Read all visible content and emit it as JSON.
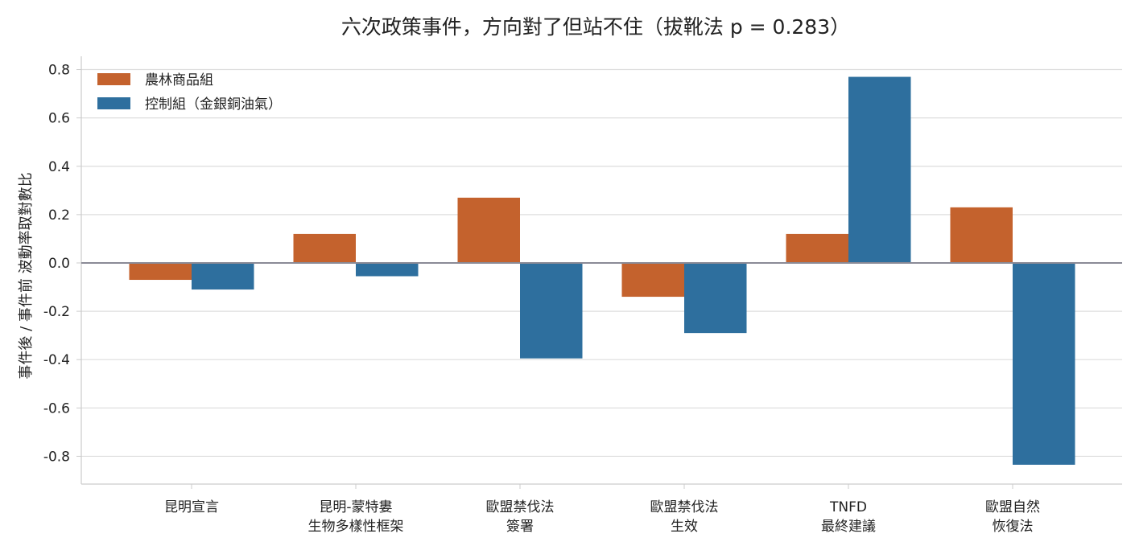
{
  "chart_data": {
    "type": "bar",
    "title": "六次政策事件，方向對了但站不住（拔靴法 p = 0.283）",
    "xlabel": "",
    "ylabel": "事件後 / 事件前 波動率取對數比",
    "categories": [
      [
        "昆明宣言"
      ],
      [
        "昆明-蒙特婁",
        "生物多樣性框架"
      ],
      [
        "歐盟禁伐法",
        "簽署"
      ],
      [
        "歐盟禁伐法",
        "生效"
      ],
      [
        "TNFD",
        "最終建議"
      ],
      [
        "歐盟自然",
        "恢復法"
      ]
    ],
    "series": [
      {
        "name": "農林商品組",
        "color": "#c4622d",
        "values": [
          -0.07,
          0.12,
          0.27,
          -0.14,
          0.12,
          0.23
        ]
      },
      {
        "name": "控制組（金銀銅油氣）",
        "color": "#2e6f9e",
        "values": [
          -0.11,
          -0.055,
          -0.395,
          -0.29,
          0.77,
          -0.835
        ]
      }
    ],
    "ylim": [
      -0.915,
      0.855
    ],
    "yticks": [
      "0.8",
      "0.6",
      "0.4",
      "0.2",
      "0.0",
      "-0.2",
      "-0.4",
      "-0.6",
      "-0.8"
    ],
    "ytick_values": [
      0.8,
      0.6,
      0.4,
      0.2,
      0.0,
      -0.2,
      -0.4,
      -0.6,
      -0.8
    ],
    "grid": true,
    "legend_position": "top-left",
    "zero_line_color": "#8a8a96",
    "grid_color": "#dddddd",
    "axis_color": "#cccccc"
  }
}
